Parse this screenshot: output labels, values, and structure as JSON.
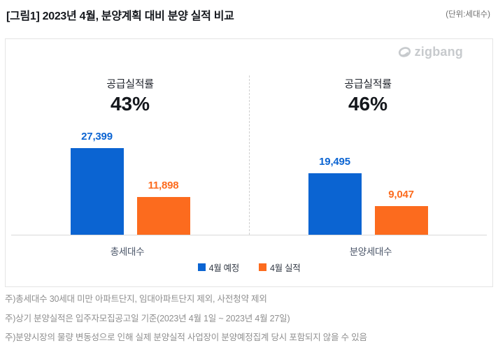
{
  "header": {
    "title": "[그림1] 2023년 4월, 분양계획 대비 분양 실적 비교",
    "unit_note": "(단위:세대수)"
  },
  "logo": {
    "text": "zigbang",
    "color": "#c7cacd"
  },
  "legend": [
    {
      "label": "4월 예정",
      "color": "#0b64d2"
    },
    {
      "label": "4월 실적",
      "color": "#fc6b1e"
    }
  ],
  "chart_data": {
    "type": "bar",
    "title": "2023년 4월, 분양계획 대비 분양 실적 비교",
    "categories": [
      "총세대수",
      "분양세대수"
    ],
    "series": [
      {
        "name": "4월 예정",
        "color": "#0b64d2",
        "values": [
          27399,
          19495
        ]
      },
      {
        "name": "4월 실적",
        "color": "#fc6b1e",
        "values": [
          11898,
          9047
        ]
      }
    ],
    "groups": [
      {
        "category": "총세대수",
        "rate_title": "공급실적률",
        "rate_value": "43%",
        "planned": 27399,
        "actual": 11898,
        "planned_label": "27,399",
        "actual_label": "11,898"
      },
      {
        "category": "분양세대수",
        "rate_title": "공급실적률",
        "rate_value": "46%",
        "planned": 19495,
        "actual": 9047,
        "planned_label": "19,495",
        "actual_label": "9,047"
      }
    ],
    "ylim": [
      0,
      27399
    ],
    "grid": false,
    "axis_color": "#d9d9d9",
    "legend_position": "bottom"
  },
  "footnotes": [
    "주)총세대수 30세대 미만 아파트단지, 임대아파트단지 제외, 사전청약 제외",
    "주)상기 분양실적은 입주자모집공고일 기준(2023년 4월 1일 ~ 2023년 4월 27일)",
    "주)분양시장의 물량 변동성으로 인해 실제 분양실적 사업장이 분양예정집계 당시 포함되지 않을 수 있음"
  ]
}
